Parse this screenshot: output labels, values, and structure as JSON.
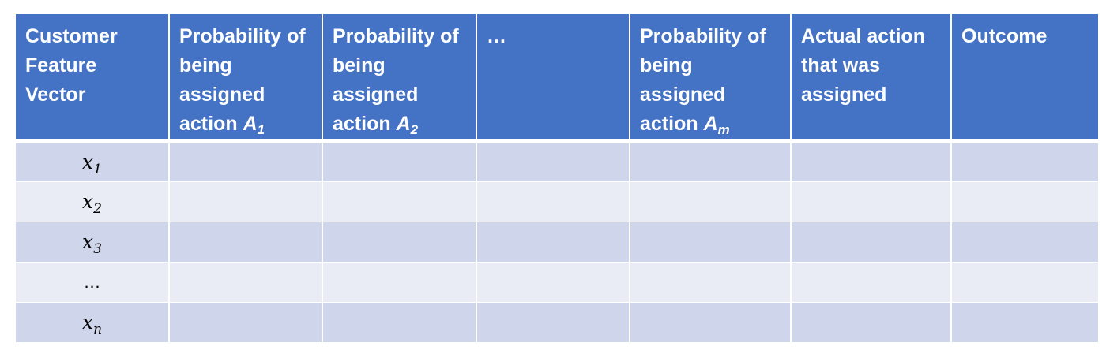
{
  "header": {
    "col0": "Customer Feature Vector",
    "col1": {
      "text": "Probability of being assigned action ",
      "var": "A",
      "sub": "1"
    },
    "col2": {
      "text": "Probability of being assigned action ",
      "var": "A",
      "sub": "2"
    },
    "col3": "…",
    "col4": {
      "text": "Probability of being assigned action ",
      "var": "A",
      "sub": "m"
    },
    "col5": "Actual action that was assigned",
    "col6": "Outcome"
  },
  "rows": [
    {
      "var": "x",
      "sub": "1"
    },
    {
      "var": "x",
      "sub": "2"
    },
    {
      "var": "x",
      "sub": "3"
    },
    {
      "label": "…"
    },
    {
      "var": "x",
      "sub": "n"
    }
  ],
  "colors": {
    "header_bg": "#4472c4",
    "row_dark": "#cfd5ea",
    "row_light": "#e9ebf5"
  }
}
